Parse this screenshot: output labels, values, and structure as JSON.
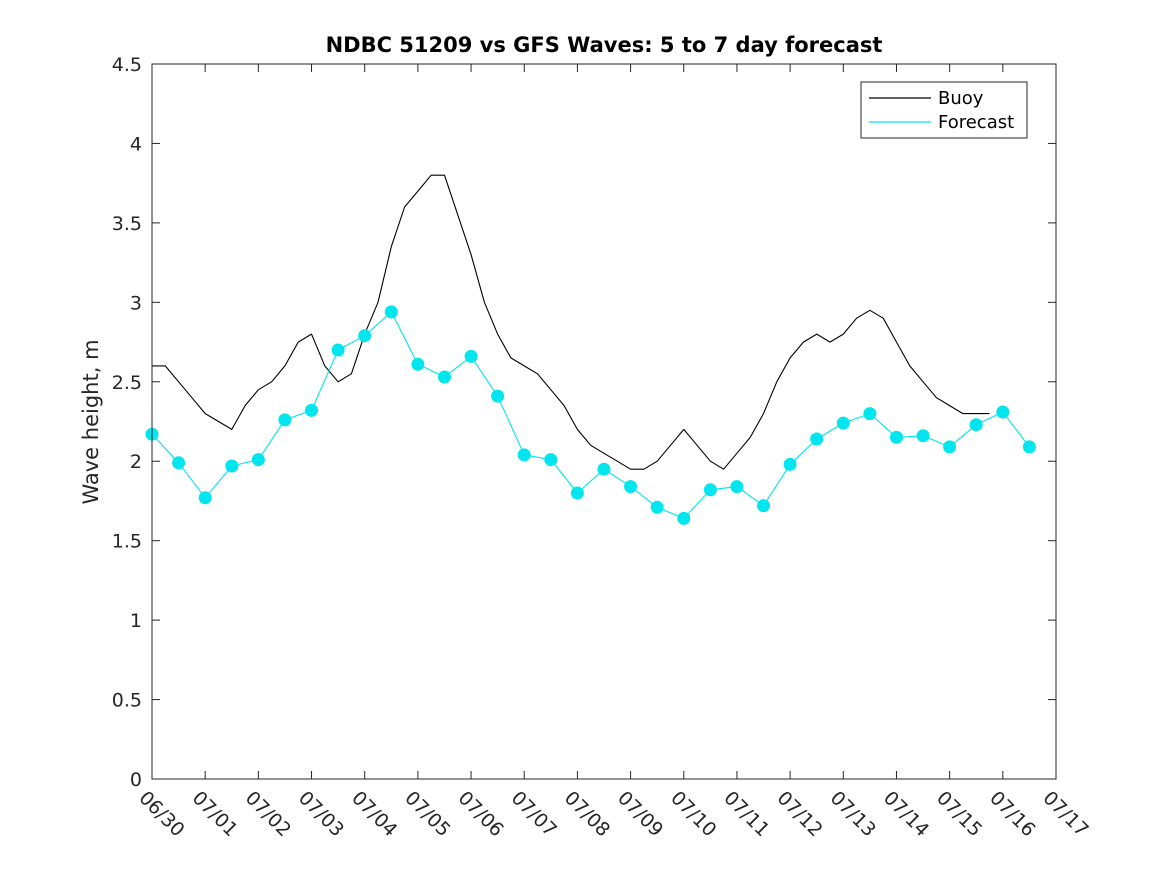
{
  "chart_data": {
    "type": "line",
    "title": "NDBC 51209 vs GFS Waves: 5 to 7 day forecast",
    "xlabel": "",
    "ylabel": "Wave height, m",
    "x_start": "06/30",
    "xlim_days": [
      0,
      17
    ],
    "ylim": [
      0,
      4.5
    ],
    "y_ticks": [
      "0",
      "0.5",
      "1",
      "1.5",
      "2",
      "2.5",
      "3",
      "3.5",
      "4",
      "4.5"
    ],
    "x_ticks": [
      "06/30",
      "07/01",
      "07/02",
      "07/03",
      "07/04",
      "07/05",
      "07/06",
      "07/07",
      "07/08",
      "07/09",
      "07/10",
      "07/11",
      "07/12",
      "07/13",
      "07/14",
      "07/15",
      "07/16",
      "07/17"
    ],
    "grid": false,
    "legend": {
      "position": "top-right",
      "entries": [
        {
          "label": "Buoy",
          "color": "#000000"
        },
        {
          "label": "Forecast",
          "color": "#00e5ee"
        }
      ]
    },
    "series": [
      {
        "name": "Buoy",
        "color": "#000000",
        "points": [
          [
            "06/30 00:00",
            2.6
          ],
          [
            "06/30 06:00",
            2.6
          ],
          [
            "06/30 12:00",
            2.5
          ],
          [
            "06/30 18:00",
            2.4
          ],
          [
            "07/01 00:00",
            2.3
          ],
          [
            "07/01 06:00",
            2.25
          ],
          [
            "07/01 12:00",
            2.2
          ],
          [
            "07/01 18:00",
            2.35
          ],
          [
            "07/02 00:00",
            2.45
          ],
          [
            "07/02 06:00",
            2.5
          ],
          [
            "07/02 12:00",
            2.6
          ],
          [
            "07/02 18:00",
            2.75
          ],
          [
            "07/03 00:00",
            2.8
          ],
          [
            "07/03 06:00",
            2.6
          ],
          [
            "07/03 12:00",
            2.5
          ],
          [
            "07/03 18:00",
            2.55
          ],
          [
            "07/04 00:00",
            2.8
          ],
          [
            "07/04 06:00",
            3.0
          ],
          [
            "07/04 12:00",
            3.35
          ],
          [
            "07/04 18:00",
            3.6
          ],
          [
            "07/05 00:00",
            3.7
          ],
          [
            "07/05 06:00",
            3.8
          ],
          [
            "07/05 12:00",
            3.8
          ],
          [
            "07/05 18:00",
            3.55
          ],
          [
            "07/06 00:00",
            3.3
          ],
          [
            "07/06 06:00",
            3.0
          ],
          [
            "07/06 12:00",
            2.8
          ],
          [
            "07/06 18:00",
            2.65
          ],
          [
            "07/07 00:00",
            2.6
          ],
          [
            "07/07 06:00",
            2.55
          ],
          [
            "07/07 12:00",
            2.45
          ],
          [
            "07/07 18:00",
            2.35
          ],
          [
            "07/08 00:00",
            2.2
          ],
          [
            "07/08 06:00",
            2.1
          ],
          [
            "07/08 12:00",
            2.05
          ],
          [
            "07/08 18:00",
            2.0
          ],
          [
            "07/09 00:00",
            1.95
          ],
          [
            "07/09 06:00",
            1.95
          ],
          [
            "07/09 12:00",
            2.0
          ],
          [
            "07/09 18:00",
            2.1
          ],
          [
            "07/10 00:00",
            2.2
          ],
          [
            "07/10 06:00",
            2.1
          ],
          [
            "07/10 12:00",
            2.0
          ],
          [
            "07/10 18:00",
            1.95
          ],
          [
            "07/11 00:00",
            2.05
          ],
          [
            "07/11 06:00",
            2.15
          ],
          [
            "07/11 12:00",
            2.3
          ],
          [
            "07/11 18:00",
            2.5
          ],
          [
            "07/12 00:00",
            2.65
          ],
          [
            "07/12 06:00",
            2.75
          ],
          [
            "07/12 12:00",
            2.8
          ],
          [
            "07/12 18:00",
            2.75
          ],
          [
            "07/13 00:00",
            2.8
          ],
          [
            "07/13 06:00",
            2.9
          ],
          [
            "07/13 12:00",
            2.95
          ],
          [
            "07/13 18:00",
            2.9
          ],
          [
            "07/14 00:00",
            2.75
          ],
          [
            "07/14 06:00",
            2.6
          ],
          [
            "07/14 12:00",
            2.5
          ],
          [
            "07/14 18:00",
            2.4
          ],
          [
            "07/15 00:00",
            2.35
          ],
          [
            "07/15 06:00",
            2.3
          ],
          [
            "07/15 12:00",
            2.3
          ],
          [
            "07/15 18:00",
            2.3
          ]
        ]
      },
      {
        "name": "Forecast",
        "color": "#00e5ee",
        "points": [
          [
            "06/30 00:00",
            2.17
          ],
          [
            "06/30 12:00",
            1.99
          ],
          [
            "07/01 00:00",
            1.77
          ],
          [
            "07/01 12:00",
            1.97
          ],
          [
            "07/02 00:00",
            2.01
          ],
          [
            "07/02 12:00",
            2.26
          ],
          [
            "07/03 00:00",
            2.32
          ],
          [
            "07/03 12:00",
            2.7
          ],
          [
            "07/04 00:00",
            2.79
          ],
          [
            "07/04 12:00",
            2.94
          ],
          [
            "07/05 00:00",
            2.61
          ],
          [
            "07/05 12:00",
            2.53
          ],
          [
            "07/06 00:00",
            2.66
          ],
          [
            "07/06 12:00",
            2.41
          ],
          [
            "07/07 00:00",
            2.04
          ],
          [
            "07/07 12:00",
            2.01
          ],
          [
            "07/08 00:00",
            1.8
          ],
          [
            "07/08 12:00",
            1.95
          ],
          [
            "07/09 00:00",
            1.84
          ],
          [
            "07/09 12:00",
            1.71
          ],
          [
            "07/10 00:00",
            1.64
          ],
          [
            "07/10 12:00",
            1.82
          ],
          [
            "07/11 00:00",
            1.84
          ],
          [
            "07/11 12:00",
            1.72
          ],
          [
            "07/12 00:00",
            1.98
          ],
          [
            "07/12 12:00",
            2.14
          ],
          [
            "07/13 00:00",
            2.24
          ],
          [
            "07/13 12:00",
            2.3
          ],
          [
            "07/14 00:00",
            2.15
          ],
          [
            "07/14 12:00",
            2.16
          ],
          [
            "07/15 00:00",
            2.09
          ],
          [
            "07/15 12:00",
            2.23
          ],
          [
            "07/16 00:00",
            2.31
          ],
          [
            "07/16 12:00",
            2.09
          ]
        ]
      }
    ],
    "forecast_markers": [
      [
        "06/30 00:00",
        2.17
      ],
      [
        "06/30 12:00",
        1.99
      ],
      [
        "07/01 00:00",
        1.77
      ],
      [
        "07/01 12:00",
        1.97
      ],
      [
        "07/02 00:00",
        2.01
      ],
      [
        "07/02 12:00",
        2.26
      ],
      [
        "07/03 00:00",
        2.32
      ],
      [
        "07/03 12:00",
        2.7
      ],
      [
        "07/04 00:00",
        2.79
      ],
      [
        "07/04 12:00",
        2.94
      ],
      [
        "07/05 00:00",
        2.61
      ],
      [
        "07/05 12:00",
        2.53
      ],
      [
        "07/06 00:00",
        2.66
      ],
      [
        "07/06 12:00",
        2.41
      ],
      [
        "07/07 00:00",
        2.04
      ],
      [
        "07/07 12:00",
        2.01
      ],
      [
        "07/08 00:00",
        1.8
      ],
      [
        "07/08 12:00",
        1.95
      ],
      [
        "07/09 00:00",
        1.84
      ],
      [
        "07/09 12:00",
        1.71
      ],
      [
        "07/10 00:00",
        1.64
      ],
      [
        "07/10 12:00",
        1.82
      ],
      [
        "07/11 00:00",
        1.84
      ],
      [
        "07/11 12:00",
        1.72
      ],
      [
        "07/12 00:00",
        1.98
      ],
      [
        "07/12 12:00",
        2.14
      ],
      [
        "07/13 00:00",
        2.24
      ],
      [
        "07/13 12:00",
        2.3
      ],
      [
        "07/14 00:00",
        2.15
      ],
      [
        "07/14 12:00",
        2.16
      ],
      [
        "07/15 00:00",
        2.09
      ],
      [
        "07/15 12:00",
        2.23
      ],
      [
        "07/16 00:00",
        2.31
      ],
      [
        "07/16 12:00",
        2.09
      ]
    ]
  }
}
